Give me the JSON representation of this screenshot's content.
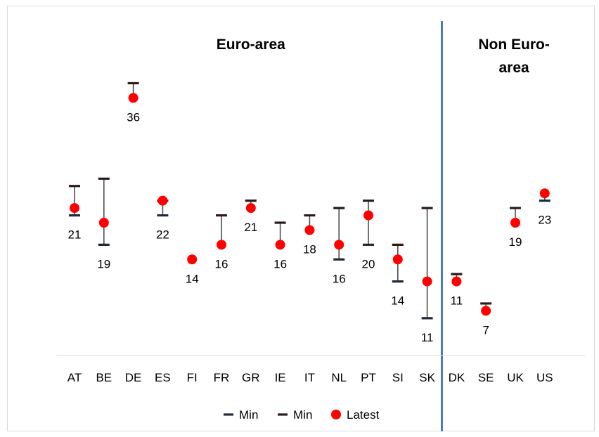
{
  "chart_data": {
    "type": "scatter",
    "title": "",
    "xlabel": "",
    "ylabel": "",
    "ylim": [
      0,
      42
    ],
    "grid": false,
    "categories": [
      "AT",
      "BE",
      "DE",
      "ES",
      "FI",
      "FR",
      "GR",
      "IE",
      "IT",
      "NL",
      "PT",
      "SI",
      "SK",
      "DK",
      "SE",
      "UK",
      "US"
    ],
    "regions": [
      {
        "label": "Euro-area",
        "categories": [
          "AT",
          "BE",
          "DE",
          "ES",
          "FI",
          "FR",
          "GR",
          "IE",
          "IT",
          "NL",
          "PT",
          "SI",
          "SK"
        ]
      },
      {
        "label": "Non Euro-\narea",
        "categories": [
          "DK",
          "SE",
          "UK",
          "US"
        ]
      }
    ],
    "series": [
      {
        "name": "Min",
        "marker": "dash",
        "color": "#1f2a36",
        "values": [
          21,
          17,
          null,
          21,
          null,
          null,
          null,
          null,
          null,
          15,
          17,
          12,
          7,
          null,
          null,
          null,
          23
        ]
      },
      {
        "name": "Min",
        "marker": "dash",
        "color": "#2b1a1a",
        "values": [
          25,
          26,
          39,
          23,
          null,
          21,
          23,
          20,
          21,
          22,
          23,
          17,
          22,
          13,
          9,
          22,
          null
        ]
      },
      {
        "name": "Latest",
        "marker": "circle",
        "color": "#ff0000",
        "values": [
          22,
          20,
          37,
          23,
          15,
          17,
          22,
          17,
          19,
          17,
          21,
          15,
          12,
          12,
          8,
          20,
          24
        ]
      }
    ],
    "data_labels": [
      "21",
      "19",
      "36",
      "22",
      "14",
      "16",
      "21",
      "16",
      "18",
      "16",
      "20",
      "14",
      "11",
      "11",
      "7",
      "19",
      "23"
    ],
    "divider_after": "SK",
    "divider_color": "#4a7ebb",
    "legend_position": "bottom"
  }
}
